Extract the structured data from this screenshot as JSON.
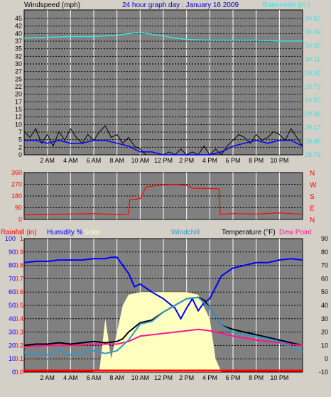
{
  "header": {
    "left_title": "Windspeed (mph)",
    "center_title": "24 hour graph day : January 16 2009",
    "right_title": "Barometer (in.)"
  },
  "panel2_header": {
    "rain": "Rainfall (in)",
    "humidity": "Humidity %",
    "solar": "Solar",
    "windchill": "Windchill",
    "temperature": "Temperature (°F)",
    "dewpoint": "Dew Point"
  },
  "colors": {
    "plot_bg": "#808080",
    "page_bg": "#d4d0c8",
    "barometer": "#40e0e0",
    "wind": "#000000",
    "wind_avg": "#0000ff",
    "direction": "#ff0000",
    "humidity": "#0000ff",
    "solar": "#ffffc0",
    "windchill": "#3399cc",
    "temperature": "#000000",
    "dewpoint": "#ff1493",
    "rain": "#ff0000",
    "grid_v": "#ffffff",
    "grid_h": "#000000"
  },
  "chart_data": [
    {
      "type": "line",
      "name": "wind-barometer",
      "x_ticks": [
        "2 AM",
        "4 AM",
        "6 AM",
        "8 AM",
        "10 AM",
        "12 PM",
        "2 PM",
        "4 PM",
        "6 PM",
        "8 PM",
        "10 PM"
      ],
      "x_range": [
        0,
        24
      ],
      "left_ticks": [
        "0",
        "2",
        "5",
        "7",
        "10",
        "12",
        "15",
        "17",
        "20",
        "22",
        "25",
        "27",
        "30",
        "32",
        "35",
        "37",
        "40",
        "42",
        "45"
      ],
      "left_range": [
        0,
        47
      ],
      "right_ticks": [
        "28.79",
        "28.98",
        "29.17",
        "29.36",
        "29.55",
        "29.73",
        "29.92",
        "30.11",
        "30.30",
        "30.49",
        "30.67"
      ],
      "right_range": [
        28.79,
        30.67
      ],
      "series": [
        {
          "name": "Barometer",
          "axis": "right",
          "x": [
            0,
            2,
            4,
            6,
            8,
            9,
            10,
            11,
            12,
            13,
            14,
            16,
            18,
            20,
            22,
            24
          ],
          "y": [
            30.4,
            30.41,
            30.42,
            30.42,
            30.44,
            30.46,
            30.48,
            30.45,
            30.43,
            30.4,
            30.38,
            30.37,
            30.37,
            30.37,
            30.36,
            30.36
          ]
        },
        {
          "name": "Windspeed",
          "axis": "left",
          "x": [
            0,
            0.5,
            1,
            1.5,
            2,
            2.5,
            3,
            3.5,
            4,
            4.5,
            5,
            5.5,
            6,
            6.5,
            7,
            7.5,
            8,
            8.5,
            9,
            9.5,
            10,
            10.5,
            11,
            11.5,
            12,
            12.5,
            13,
            13.5,
            14,
            14.5,
            15,
            15.5,
            16,
            16.5,
            17,
            17.5,
            18,
            18.5,
            19,
            19.5,
            20,
            20.5,
            21,
            21.5,
            22,
            22.5,
            23,
            23.5,
            24
          ],
          "y": [
            8,
            6,
            9,
            4,
            7,
            3,
            8,
            5,
            9,
            6,
            4,
            7,
            5,
            8,
            10,
            6,
            7,
            4,
            6,
            3,
            2,
            0,
            0,
            0,
            0,
            1,
            0,
            2,
            0,
            1,
            0,
            3,
            0,
            2,
            0,
            3,
            5,
            7,
            6,
            4,
            7,
            5,
            6,
            8,
            7,
            5,
            9,
            6,
            3
          ]
        },
        {
          "name": "Wind average",
          "axis": "left",
          "x": [
            0,
            1,
            2,
            3,
            4,
            5,
            6,
            7,
            8,
            9,
            10,
            11,
            12,
            13,
            14,
            15,
            16,
            17,
            18,
            19,
            20,
            21,
            22,
            23,
            24
          ],
          "y": [
            5,
            5,
            4,
            5,
            4,
            4,
            5,
            5,
            4,
            3,
            1,
            1,
            0,
            0,
            0,
            0,
            0,
            1,
            3,
            4,
            5,
            4,
            5,
            5,
            3
          ]
        }
      ]
    },
    {
      "type": "line",
      "name": "wind-direction",
      "x_range": [
        0,
        24
      ],
      "left_ticks": [
        "0",
        "90",
        "180",
        "270",
        "360"
      ],
      "left_range": [
        0,
        360
      ],
      "right_ticks": [
        "N",
        "E",
        "S",
        "W",
        "N"
      ],
      "series": [
        {
          "name": "Direction",
          "x": [
            0,
            2,
            4,
            6,
            8,
            9,
            9.1,
            10,
            10.5,
            12,
            13,
            14,
            14.5,
            16,
            16.8,
            16.9,
            18,
            20,
            22,
            24
          ],
          "y": [
            35,
            38,
            42,
            45,
            38,
            40,
            150,
            160,
            250,
            265,
            268,
            262,
            240,
            238,
            235,
            40,
            45,
            42,
            50,
            40
          ]
        }
      ]
    },
    {
      "type": "area",
      "name": "humidity-temperature",
      "x_ticks": [
        "2 AM",
        "4 AM",
        "6 AM",
        "8 AM",
        "10 AM",
        "12 PM",
        "2 PM",
        "4 PM",
        "6 PM",
        "8 PM",
        "10 PM"
      ],
      "x_range": [
        0,
        24
      ],
      "left_ticks": [
        "0",
        "10",
        "20",
        "30",
        "40",
        "50",
        "60",
        "70",
        "80",
        "90",
        "100"
      ],
      "left_range": [
        0,
        100
      ],
      "rain_ticks": [
        "0.0",
        "0.1",
        "0.2",
        "0.3",
        "0.4",
        "0.5",
        "0.6",
        "0.7",
        "0.8",
        "0.9",
        "1"
      ],
      "right_ticks": [
        "-10",
        "0",
        "10",
        "20",
        "30",
        "40",
        "50",
        "60",
        "70",
        "80",
        "90"
      ],
      "right_range": [
        -10,
        90
      ],
      "series": [
        {
          "name": "Solar",
          "axis": "left",
          "x": [
            0,
            6,
            6.5,
            7,
            7.5,
            8,
            8.5,
            9,
            10,
            12,
            14,
            15,
            16,
            16.5,
            17,
            24
          ],
          "y": [
            0,
            0,
            2,
            40,
            10,
            30,
            50,
            58,
            60,
            60,
            60,
            58,
            40,
            10,
            0,
            0
          ]
        },
        {
          "name": "Humidity",
          "axis": "left",
          "x": [
            0,
            1,
            2,
            3,
            4,
            5,
            6,
            7,
            7.5,
            8,
            8.5,
            9,
            9.5,
            10,
            11,
            12,
            13,
            13.5,
            14,
            14.5,
            15,
            15.5,
            16,
            17,
            18,
            19,
            20,
            21,
            22,
            23,
            24
          ],
          "y": [
            82,
            83,
            83,
            84,
            84,
            84,
            85,
            85,
            86,
            86,
            80,
            74,
            64,
            66,
            60,
            55,
            48,
            40,
            48,
            55,
            46,
            52,
            55,
            72,
            78,
            80,
            82,
            82,
            84,
            85,
            84
          ]
        },
        {
          "name": "Temperature",
          "axis": "right",
          "x": [
            0,
            1,
            2,
            3,
            4,
            5,
            6,
            7,
            8,
            8.5,
            9,
            10,
            11,
            12,
            13,
            14,
            15,
            15.5,
            16,
            17,
            18,
            19,
            20,
            21,
            22,
            23,
            24
          ],
          "y": [
            10,
            11,
            11,
            12,
            11,
            12,
            13,
            12,
            13,
            15,
            20,
            27,
            29,
            35,
            40,
            45,
            46,
            44,
            38,
            25,
            22,
            20,
            18,
            16,
            14,
            12,
            10
          ]
        },
        {
          "name": "Dew Point",
          "axis": "right",
          "x": [
            0,
            2,
            4,
            6,
            8,
            9,
            10,
            11,
            12,
            13,
            14,
            15,
            16,
            17,
            18,
            20,
            22,
            24
          ],
          "y": [
            9,
            10,
            10,
            11,
            11,
            13,
            17,
            18,
            19,
            20,
            21,
            22,
            21,
            19,
            17,
            14,
            12,
            10
          ]
        },
        {
          "name": "Windchill",
          "axis": "right",
          "x": [
            0,
            1,
            2,
            3,
            4,
            5,
            6,
            7,
            8,
            9,
            10,
            11,
            12,
            13,
            14,
            15,
            16,
            17,
            18,
            20,
            22,
            24
          ],
          "y": [
            5,
            4,
            3,
            6,
            3,
            5,
            6,
            4,
            6,
            14,
            26,
            28,
            35,
            40,
            45,
            46,
            38,
            25,
            20,
            17,
            13,
            5
          ]
        },
        {
          "name": "Rainfall",
          "axis": "rain",
          "x": [
            0,
            24
          ],
          "y": [
            0,
            0
          ]
        }
      ]
    }
  ]
}
